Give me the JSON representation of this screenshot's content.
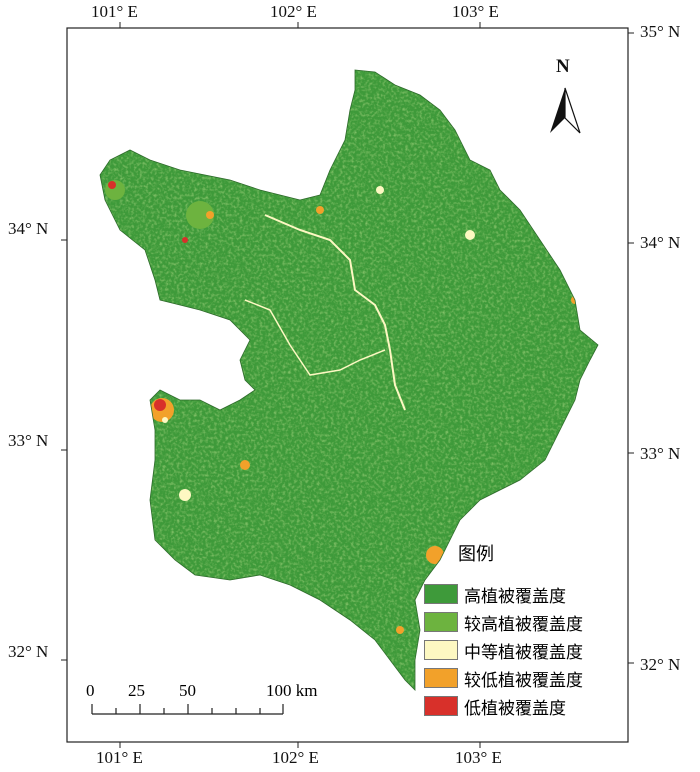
{
  "axes": {
    "top_labels": [
      "101° E",
      "102° E",
      "103° E"
    ],
    "bottom_labels": [
      "101° E",
      "102° E",
      "103° E"
    ],
    "left_labels": [
      "34° N",
      "33° N",
      "32° N"
    ],
    "right_labels": [
      "35° N",
      "34° N",
      "33° N",
      "32° N"
    ]
  },
  "north_arrow": {
    "label": "N"
  },
  "legend": {
    "title": "图例",
    "items": [
      {
        "label": "高植被覆盖度",
        "color": "#3e9a3a"
      },
      {
        "label": "较高植被覆盖度",
        "color": "#6db33f"
      },
      {
        "label": "中等植被覆盖度",
        "color": "#fdf8c2"
      },
      {
        "label": "较低植被覆盖度",
        "color": "#f2a12a"
      },
      {
        "label": "低植被覆盖度",
        "color": "#d8302a"
      }
    ]
  },
  "scale_bar": {
    "labels": [
      "0",
      "25",
      "50",
      "100 km"
    ]
  }
}
